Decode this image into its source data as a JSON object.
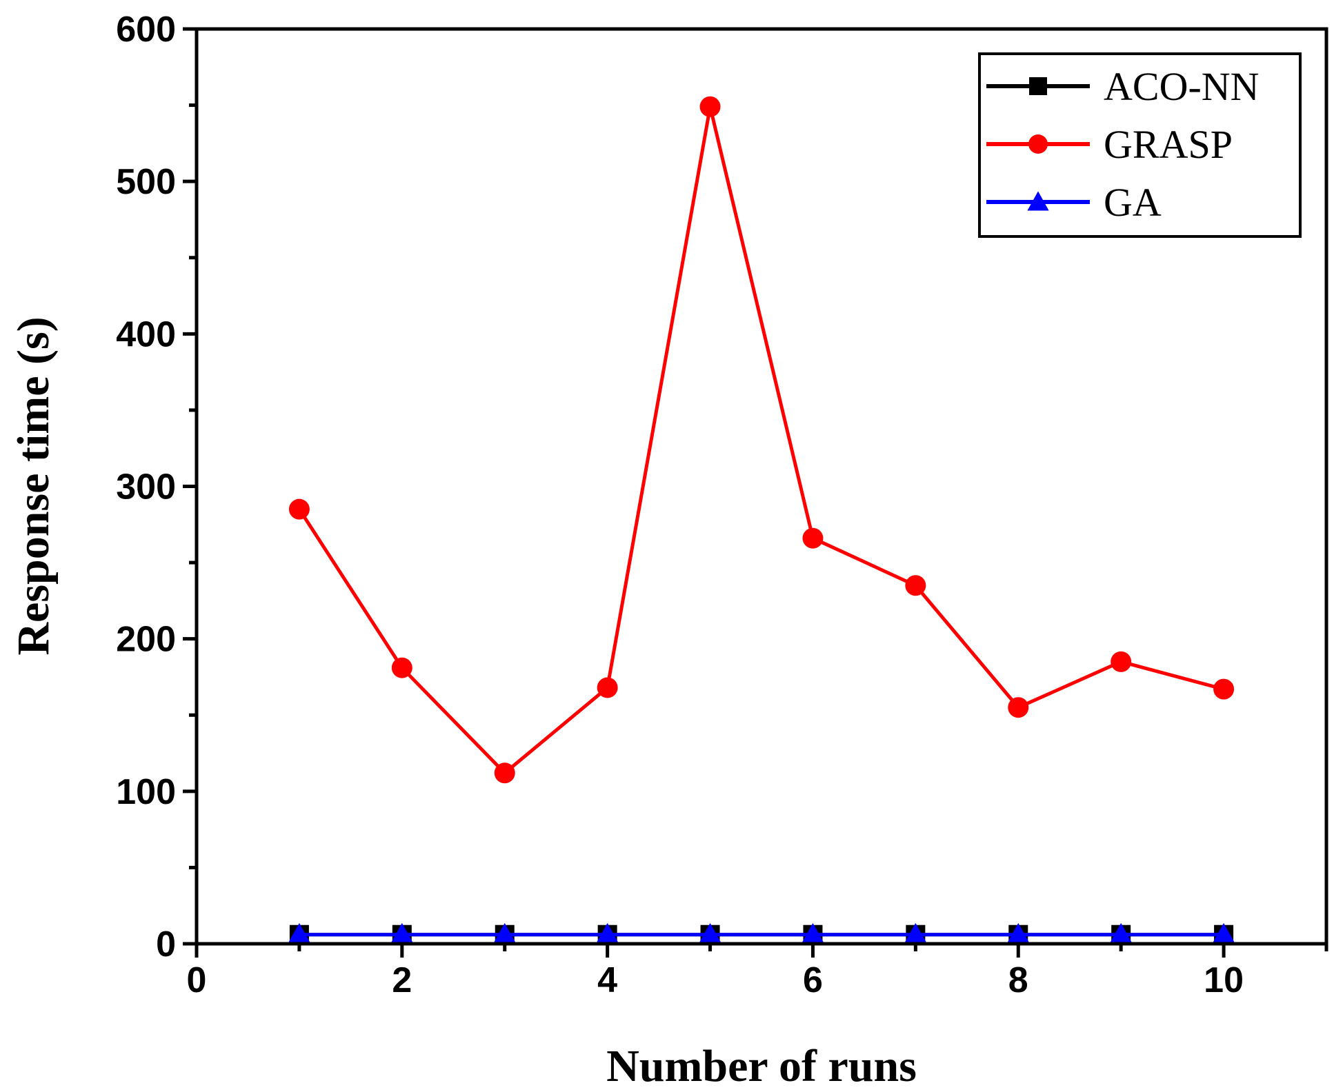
{
  "chart_data": {
    "type": "line",
    "title": "",
    "xlabel": "Number of runs",
    "ylabel": "Response time (s)",
    "xlim": [
      0,
      11
    ],
    "ylim": [
      0,
      600
    ],
    "x_ticks": [
      0,
      2,
      4,
      6,
      8,
      10
    ],
    "x_tick_labels": [
      "0",
      "2",
      "4",
      "6",
      "8",
      "10"
    ],
    "y_ticks": [
      0,
      100,
      200,
      300,
      400,
      500,
      600
    ],
    "y_tick_labels": [
      "0",
      "100",
      "200",
      "300",
      "400",
      "500",
      "600"
    ],
    "x": [
      1,
      2,
      3,
      4,
      5,
      6,
      7,
      8,
      9,
      10
    ],
    "legend_position": "top-right",
    "series": [
      {
        "name": "ACO-NN",
        "color": "#000000",
        "marker": "square",
        "values": [
          6,
          6,
          6,
          6,
          6,
          6,
          6,
          6,
          6,
          6
        ]
      },
      {
        "name": "GRASP",
        "color": "#ff0000",
        "marker": "circle",
        "values": [
          285,
          181,
          112,
          168,
          549,
          266,
          235,
          155,
          185,
          167
        ]
      },
      {
        "name": "GA",
        "color": "#0000ff",
        "marker": "triangle",
        "values": [
          6,
          6,
          6,
          6,
          6,
          6,
          6,
          6,
          6,
          6
        ]
      }
    ]
  }
}
